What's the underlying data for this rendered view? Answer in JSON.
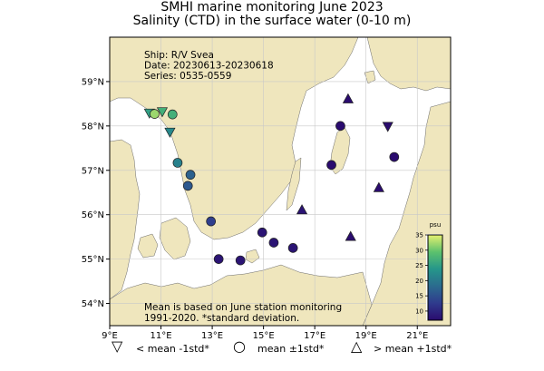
{
  "title_line1": "SMHI marine monitoring June 2023",
  "title_line2": "Salinity (CTD) in the surface water (0-10 m)",
  "info": {
    "ship": "Ship: R/V Svea",
    "date": "Date: 20230613-20230618",
    "series": "Series: 0535-0559"
  },
  "note": {
    "line1": "Mean is based on June station monitoring",
    "line2": "1991-2020. *standard deviation."
  },
  "colorbar": {
    "label": "psu",
    "ticks": [
      "10",
      "15",
      "20",
      "25",
      "30",
      "35"
    ],
    "range": [
      7,
      35
    ]
  },
  "axes": {
    "lon_ticks": [
      "9°E",
      "11°E",
      "13°E",
      "15°E",
      "17°E",
      "19°E",
      "21°E"
    ],
    "lat_ticks": [
      "54°N",
      "55°N",
      "56°N",
      "57°N",
      "58°N",
      "59°N"
    ]
  },
  "legend": {
    "below": "< mean -1std*",
    "within": "mean ±1std*",
    "above": "> mean +1std*"
  },
  "colors": {
    "land": "#efe6bd",
    "sea": "#ffffff",
    "grid": "#c8c8c8"
  },
  "chart_data": {
    "type": "scatter",
    "xlim": [
      9.0,
      22.3
    ],
    "ylim": [
      53.5,
      60.0
    ],
    "stations": [
      {
        "lon": 10.55,
        "lat": 58.3,
        "salinity": 25,
        "marker": "below"
      },
      {
        "lon": 10.75,
        "lat": 58.27,
        "salinity": 32,
        "marker": "within"
      },
      {
        "lon": 11.05,
        "lat": 58.33,
        "salinity": 27,
        "marker": "below"
      },
      {
        "lon": 11.45,
        "lat": 58.26,
        "salinity": 27,
        "marker": "within"
      },
      {
        "lon": 11.35,
        "lat": 57.87,
        "salinity": 22,
        "marker": "below"
      },
      {
        "lon": 11.65,
        "lat": 57.17,
        "salinity": 21,
        "marker": "within"
      },
      {
        "lon": 12.15,
        "lat": 56.9,
        "salinity": 17,
        "marker": "within"
      },
      {
        "lon": 12.05,
        "lat": 56.65,
        "salinity": 16,
        "marker": "within"
      },
      {
        "lon": 12.95,
        "lat": 55.85,
        "salinity": 13,
        "marker": "within"
      },
      {
        "lon": 13.25,
        "lat": 55.0,
        "salinity": 8,
        "marker": "within"
      },
      {
        "lon": 14.1,
        "lat": 54.97,
        "salinity": 8,
        "marker": "within"
      },
      {
        "lon": 14.95,
        "lat": 55.6,
        "salinity": 8,
        "marker": "within"
      },
      {
        "lon": 15.4,
        "lat": 55.37,
        "salinity": 8,
        "marker": "within"
      },
      {
        "lon": 16.15,
        "lat": 55.25,
        "salinity": 8,
        "marker": "within"
      },
      {
        "lon": 16.5,
        "lat": 56.1,
        "salinity": 8,
        "marker": "above"
      },
      {
        "lon": 17.65,
        "lat": 57.12,
        "salinity": 7,
        "marker": "within"
      },
      {
        "lon": 18.0,
        "lat": 58.0,
        "salinity": 7,
        "marker": "within"
      },
      {
        "lon": 18.3,
        "lat": 58.6,
        "salinity": 7,
        "marker": "above"
      },
      {
        "lon": 18.4,
        "lat": 55.5,
        "salinity": 7,
        "marker": "above"
      },
      {
        "lon": 19.5,
        "lat": 56.6,
        "salinity": 7,
        "marker": "above"
      },
      {
        "lon": 19.85,
        "lat": 58.0,
        "salinity": 7,
        "marker": "below"
      },
      {
        "lon": 20.1,
        "lat": 57.3,
        "salinity": 7,
        "marker": "within"
      }
    ]
  }
}
